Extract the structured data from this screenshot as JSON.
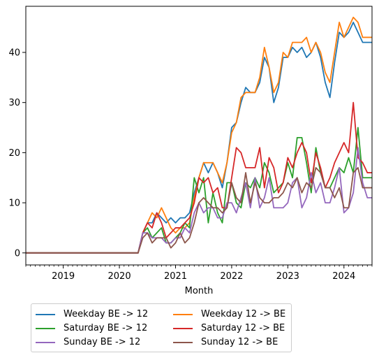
{
  "chart_data": {
    "type": "line",
    "xlabel": "Month",
    "ylabel": "",
    "title": "",
    "xlim": [
      "2018-05-01",
      "2024-07-01"
    ],
    "ylim": [
      -2.4,
      49.2
    ],
    "x_ticks": [
      "2019",
      "2020",
      "2021",
      "2022",
      "2023",
      "2024"
    ],
    "y_ticks": [
      0,
      10,
      20,
      30,
      40
    ],
    "grid": false,
    "legend_position": "below-left",
    "x": [
      "2018-05",
      "2018-06",
      "2018-07",
      "2018-08",
      "2018-09",
      "2018-10",
      "2018-11",
      "2018-12",
      "2019-01",
      "2019-02",
      "2019-03",
      "2019-04",
      "2019-05",
      "2019-06",
      "2019-07",
      "2019-08",
      "2019-09",
      "2019-10",
      "2019-11",
      "2019-12",
      "2020-01",
      "2020-02",
      "2020-03",
      "2020-04",
      "2020-05",
      "2020-06",
      "2020-07",
      "2020-08",
      "2020-09",
      "2020-10",
      "2020-11",
      "2020-12",
      "2021-01",
      "2021-02",
      "2021-03",
      "2021-04",
      "2021-05",
      "2021-06",
      "2021-07",
      "2021-08",
      "2021-09",
      "2021-10",
      "2021-11",
      "2021-12",
      "2022-01",
      "2022-02",
      "2022-03",
      "2022-04",
      "2022-05",
      "2022-06",
      "2022-07",
      "2022-08",
      "2022-09",
      "2022-10",
      "2022-11",
      "2022-12",
      "2023-01",
      "2023-02",
      "2023-03",
      "2023-04",
      "2023-05",
      "2023-06",
      "2023-07",
      "2023-08",
      "2023-09",
      "2023-10",
      "2023-11",
      "2023-12",
      "2024-01",
      "2024-02",
      "2024-03",
      "2024-04",
      "2024-05",
      "2024-06",
      "2024-07"
    ],
    "series": [
      {
        "name": "Weekday BE -> 12",
        "color": "#1f77b4",
        "values": [
          0,
          0,
          0,
          0,
          0,
          0,
          0,
          0,
          0,
          0,
          0,
          0,
          0,
          0,
          0,
          0,
          0,
          0,
          0,
          0,
          0,
          0,
          0,
          0,
          0,
          4,
          6,
          6,
          8,
          7,
          6,
          7,
          6,
          7,
          7,
          8,
          12,
          15,
          18,
          16,
          18,
          16,
          13,
          18,
          25,
          26,
          30,
          33,
          32,
          32,
          34,
          39,
          37,
          30,
          33,
          39,
          39,
          41,
          40,
          41,
          39,
          40,
          42,
          39,
          34,
          31,
          38,
          44,
          43,
          44,
          46,
          44,
          42,
          42,
          42
        ]
      },
      {
        "name": "Weekday 12 -> BE",
        "color": "#ff7f0e",
        "values": [
          0,
          0,
          0,
          0,
          0,
          0,
          0,
          0,
          0,
          0,
          0,
          0,
          0,
          0,
          0,
          0,
          0,
          0,
          0,
          0,
          0,
          0,
          0,
          0,
          0,
          4,
          6,
          8,
          7,
          9,
          7,
          5,
          4,
          5,
          5,
          6,
          11,
          15,
          18,
          18,
          18,
          16,
          14,
          18,
          24,
          26,
          31,
          32,
          32,
          32,
          35,
          41,
          37,
          32,
          34,
          40,
          39,
          42,
          42,
          42,
          43,
          40,
          42,
          40,
          36,
          34,
          40,
          46,
          43,
          45,
          47,
          46,
          43,
          43,
          43
        ]
      },
      {
        "name": "Saturday BE -> 12",
        "color": "#2ca02c",
        "values": [
          0,
          0,
          0,
          0,
          0,
          0,
          0,
          0,
          0,
          0,
          0,
          0,
          0,
          0,
          0,
          0,
          0,
          0,
          0,
          0,
          0,
          0,
          0,
          0,
          0,
          4,
          5,
          3,
          4,
          5,
          2,
          2,
          3,
          4,
          6,
          5,
          15,
          12,
          15,
          6,
          12,
          8,
          6,
          14,
          14,
          10,
          9,
          14,
          13,
          15,
          13,
          18,
          16,
          12,
          13,
          14,
          18,
          15,
          23,
          23,
          18,
          12,
          21,
          16,
          13,
          13,
          15,
          17,
          16,
          19,
          16,
          25,
          15,
          15,
          15
        ]
      },
      {
        "name": "Saturday 12 -> BE",
        "color": "#d62728",
        "values": [
          0,
          0,
          0,
          0,
          0,
          0,
          0,
          0,
          0,
          0,
          0,
          0,
          0,
          0,
          0,
          0,
          0,
          0,
          0,
          0,
          0,
          0,
          0,
          0,
          0,
          4,
          6,
          5,
          8,
          6,
          3,
          4,
          5,
          5,
          6,
          7,
          10,
          15,
          14,
          15,
          12,
          13,
          9,
          9,
          15,
          21,
          20,
          17,
          17,
          17,
          21,
          13,
          19,
          17,
          12,
          14,
          19,
          17,
          20,
          22,
          20,
          14,
          20,
          17,
          13,
          15,
          18,
          20,
          22,
          20,
          30,
          19,
          18,
          16,
          16
        ]
      },
      {
        "name": "Sunday BE -> 12",
        "color": "#9467bd",
        "values": [
          0,
          0,
          0,
          0,
          0,
          0,
          0,
          0,
          0,
          0,
          0,
          0,
          0,
          0,
          0,
          0,
          0,
          0,
          0,
          0,
          0,
          0,
          0,
          0,
          0,
          4,
          4,
          3,
          3,
          3,
          2,
          2,
          3,
          3,
          5,
          4,
          8,
          10,
          8,
          9,
          9,
          7,
          7,
          10,
          10,
          8,
          11,
          14,
          9,
          15,
          9,
          11,
          15,
          9,
          9,
          9,
          10,
          14,
          15,
          9,
          11,
          16,
          12,
          14,
          10,
          10,
          13,
          17,
          8,
          9,
          12,
          21,
          14,
          11,
          11
        ]
      },
      {
        "name": "Sunday 12 -> BE",
        "color": "#8c564b",
        "values": [
          0,
          0,
          0,
          0,
          0,
          0,
          0,
          0,
          0,
          0,
          0,
          0,
          0,
          0,
          0,
          0,
          0,
          0,
          0,
          0,
          0,
          0,
          0,
          0,
          0,
          3,
          4,
          2,
          3,
          3,
          3,
          1,
          2,
          4,
          2,
          3,
          6,
          10,
          11,
          10,
          9,
          9,
          8,
          9,
          14,
          11,
          10,
          16,
          10,
          14,
          11,
          10,
          10,
          11,
          11,
          12,
          14,
          13,
          15,
          12,
          14,
          13,
          17,
          16,
          13,
          13,
          11,
          13,
          9,
          9,
          16,
          17,
          13,
          13,
          13
        ]
      }
    ]
  }
}
